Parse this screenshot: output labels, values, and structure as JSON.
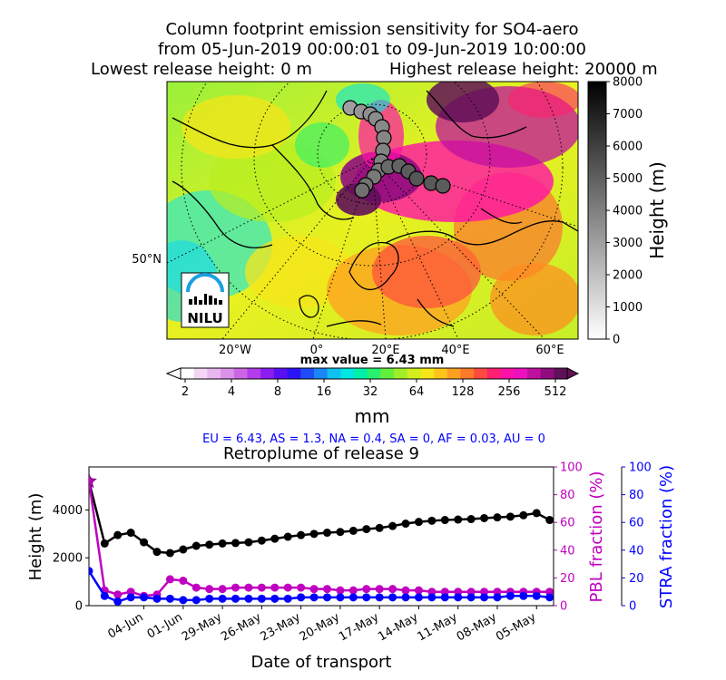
{
  "title": {
    "line1": "Column footprint emission sensitivity for SO4-aero",
    "line2": "from 05-Jun-2019 00:00:01 to 09-Jun-2019 10:00:00",
    "lowest": "Lowest release height: 0 m",
    "highest": "Highest release height: 20000 m"
  },
  "map": {
    "lat_label": "50°N",
    "lon_labels": [
      "20°W",
      "0°",
      "20°E",
      "40°E",
      "60°E"
    ],
    "max_value": "max value = 6.43 mm",
    "logo_text": "NILU"
  },
  "height_colorbar": {
    "label": "Height (m)",
    "ticks": [
      "0",
      "1000",
      "2000",
      "3000",
      "4000",
      "5000",
      "6000",
      "7000",
      "8000"
    ]
  },
  "emission_colorbar": {
    "unit": "mm",
    "ticks": [
      "2",
      "4",
      "8",
      "16",
      "32",
      "64",
      "128",
      "256",
      "512"
    ],
    "colors": [
      "#ffffff",
      "#f3d6f5",
      "#e9b6f0",
      "#dc92ea",
      "#cc66e6",
      "#b43cec",
      "#8c1cf2",
      "#5a10f4",
      "#2a14f6",
      "#1f4cf7",
      "#1a86f8",
      "#10c0f0",
      "#00e6e0",
      "#00f0a8",
      "#28f070",
      "#64ee3c",
      "#a0ee28",
      "#d2ee1c",
      "#f5e61a",
      "#ffc41a",
      "#ffa020",
      "#ff7a28",
      "#ff4a40",
      "#ff2070",
      "#ff10a8",
      "#ee10c0",
      "#c010a0",
      "#900c80",
      "#601058"
    ]
  },
  "regions_text": "EU = 6.43,  AS = 1.3,  NA = 0.4,  SA = 0,  AF = 0.03,  AU = 0",
  "plot": {
    "title": "Retroplume of release 9",
    "ylabel": "Height (m)",
    "ylabel_pbl": "PBL fraction (%)",
    "ylabel_stra": "STRA fraction (%)",
    "xlabel": "Date of transport",
    "y_ticks": [
      "0",
      "2000",
      "4000"
    ],
    "pct_ticks": [
      "0",
      "20",
      "40",
      "60",
      "80",
      "100"
    ]
  },
  "colors": {
    "height_series": "#000000",
    "pbl_series": "#c000c0",
    "stra_series": "#0000ff",
    "star": "#c000c0",
    "regions_text": "#0000ff"
  },
  "chart_data": [
    {
      "type": "line",
      "title": "Retroplume of release 9",
      "xlabel": "Date of transport",
      "x_tick_labels": [
        "04-Jun",
        "01-Jun",
        "29-May",
        "26-May",
        "23-May",
        "20-May",
        "17-May",
        "14-May",
        "11-May",
        "08-May",
        "05-May"
      ],
      "x_tick_days_ago": [
        5,
        8,
        11,
        14,
        17,
        20,
        23,
        26,
        29,
        32,
        35
      ],
      "x_days_ago_range": [
        0.8,
        36.3
      ],
      "x_days_ago": [
        0.8,
        2,
        3,
        4,
        5,
        6,
        7,
        8,
        9,
        10,
        11,
        12,
        13,
        14,
        15,
        16,
        17,
        18,
        19,
        20,
        21,
        22,
        23,
        24,
        25,
        26,
        27,
        28,
        29,
        30,
        31,
        32,
        33,
        34,
        35,
        36
      ],
      "series": [
        {
          "axis": "Height (m)",
          "ylim": [
            0,
            5800
          ],
          "values": [
            5200,
            2600,
            2950,
            3050,
            2650,
            2250,
            2200,
            2350,
            2500,
            2550,
            2600,
            2620,
            2650,
            2720,
            2800,
            2880,
            2950,
            3000,
            3050,
            3080,
            3130,
            3200,
            3250,
            3330,
            3430,
            3500,
            3550,
            3580,
            3600,
            3620,
            3660,
            3690,
            3720,
            3780,
            3870,
            3580
          ]
        },
        {
          "axis": "PBL fraction (%)",
          "ylim": [
            0,
            100
          ],
          "values": [
            90,
            11,
            8,
            10,
            7,
            8,
            19,
            18,
            13,
            12,
            12,
            13,
            13,
            13,
            13,
            13,
            13,
            12,
            12,
            11,
            11,
            12,
            12,
            12,
            11,
            11,
            10,
            10,
            10,
            10,
            10,
            10,
            10,
            10,
            10,
            10
          ]
        },
        {
          "axis": "STRA fraction (%)",
          "ylim": [
            0,
            100
          ],
          "values": [
            25,
            7,
            3,
            6,
            6,
            5,
            5,
            4,
            4,
            5,
            5,
            5,
            5,
            5,
            5,
            5,
            6,
            6,
            6,
            6,
            6,
            6,
            6,
            6,
            6,
            6,
            6,
            6,
            6,
            6,
            6,
            6,
            7,
            7,
            7,
            6
          ]
        }
      ]
    },
    {
      "type": "map",
      "title": "Column footprint emission sensitivity for SO4-aero",
      "trajectory_height_m": [
        3000,
        3300,
        3500,
        3600,
        3700,
        3800,
        3900,
        4000,
        4100,
        4200,
        4400,
        4500,
        4700,
        4900,
        5100,
        5300,
        5200,
        5100
      ]
    }
  ]
}
